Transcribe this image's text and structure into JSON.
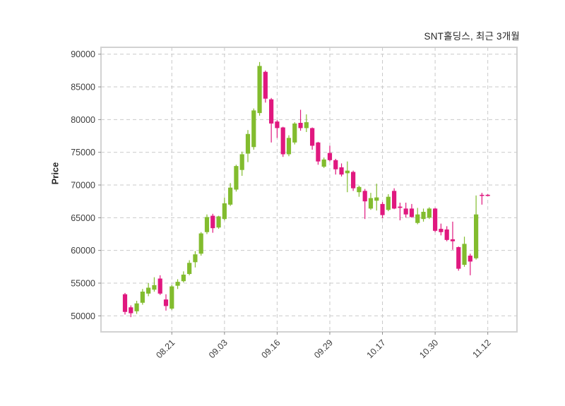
{
  "chart_data": {
    "type": "candlestick",
    "title": "SNT홀딩스, 최근 3개월",
    "ylabel": "Price",
    "up_color": "#82BC2E",
    "down_color": "#E0187F",
    "grid_color": "#c9c9c9",
    "spine_color": "#d2d2d2",
    "grid": true,
    "ylim": [
      47550,
      91050
    ],
    "yticks": [
      50000,
      55000,
      60000,
      65000,
      70000,
      75000,
      80000,
      85000,
      90000
    ],
    "xtick_labels": [
      "08.21",
      "09.03",
      "09.16",
      "09.29",
      "10.17",
      "10.30",
      "11.12"
    ],
    "xtick_indices": [
      8,
      17,
      26,
      35,
      44,
      53,
      62
    ],
    "candles_format": [
      "open",
      "high",
      "low",
      "close"
    ],
    "candles": [
      [
        53300,
        53500,
        50200,
        50600
      ],
      [
        51300,
        51600,
        49800,
        50400
      ],
      [
        50700,
        52300,
        50300,
        51900
      ],
      [
        52000,
        54100,
        51700,
        53700
      ],
      [
        53400,
        55000,
        53000,
        54300
      ],
      [
        54000,
        55900,
        53700,
        54700
      ],
      [
        55700,
        56200,
        53200,
        53400
      ],
      [
        52500,
        53300,
        50800,
        51500
      ],
      [
        51100,
        54700,
        50900,
        54500
      ],
      [
        54600,
        55600,
        54100,
        55200
      ],
      [
        55300,
        56800,
        55100,
        56300
      ],
      [
        56400,
        58500,
        56200,
        58100
      ],
      [
        58200,
        59900,
        57400,
        59400
      ],
      [
        59500,
        62800,
        59200,
        62600
      ],
      [
        62800,
        65500,
        62500,
        65100
      ],
      [
        65300,
        65600,
        62700,
        63400
      ],
      [
        63500,
        65300,
        63300,
        65200
      ],
      [
        64800,
        68100,
        64600,
        67200
      ],
      [
        67000,
        70300,
        66800,
        69600
      ],
      [
        69300,
        73100,
        69000,
        72900
      ],
      [
        72300,
        75100,
        71400,
        74700
      ],
      [
        74800,
        78400,
        73500,
        77800
      ],
      [
        75800,
        81700,
        75400,
        81400
      ],
      [
        81000,
        88800,
        80600,
        88200
      ],
      [
        87300,
        87500,
        82600,
        83200
      ],
      [
        83100,
        83300,
        76500,
        79400
      ],
      [
        79700,
        79900,
        77200,
        78700
      ],
      [
        78800,
        78900,
        74300,
        74700
      ],
      [
        74700,
        77600,
        74400,
        77200
      ],
      [
        76500,
        79600,
        76200,
        79400
      ],
      [
        79500,
        81500,
        78300,
        78700
      ],
      [
        78700,
        80800,
        78100,
        79600
      ],
      [
        78700,
        78800,
        75400,
        76000
      ],
      [
        76500,
        76600,
        73100,
        73600
      ],
      [
        72800,
        74200,
        72600,
        73900
      ],
      [
        74900,
        76000,
        73600,
        73800
      ],
      [
        73800,
        74000,
        71600,
        72400
      ],
      [
        72700,
        73300,
        71300,
        71600
      ],
      [
        71800,
        73600,
        68900,
        72200
      ],
      [
        72000,
        72200,
        69100,
        69500
      ],
      [
        68900,
        69900,
        68200,
        69700
      ],
      [
        69100,
        69400,
        64800,
        67500
      ],
      [
        66400,
        68800,
        66200,
        68000
      ],
      [
        67600,
        70200,
        66100,
        68100
      ],
      [
        67100,
        67400,
        64900,
        65400
      ],
      [
        66200,
        68600,
        66000,
        68200
      ],
      [
        69100,
        69500,
        66300,
        66400
      ],
      [
        66700,
        67300,
        64600,
        66500
      ],
      [
        66400,
        67300,
        65000,
        65500
      ],
      [
        66400,
        67100,
        65000,
        65100
      ],
      [
        64200,
        66500,
        64000,
        65500
      ],
      [
        64800,
        66400,
        64400,
        65900
      ],
      [
        65000,
        66600,
        64800,
        66400
      ],
      [
        66400,
        66500,
        62800,
        63000
      ],
      [
        63300,
        64100,
        62300,
        62800
      ],
      [
        63200,
        63700,
        61400,
        61600
      ],
      [
        61700,
        64400,
        60100,
        61400
      ],
      [
        60500,
        60600,
        56900,
        57200
      ],
      [
        57800,
        62100,
        57500,
        61000
      ],
      [
        59200,
        59500,
        56200,
        58300
      ],
      [
        58800,
        68400,
        58600,
        65500
      ],
      [
        68500,
        68800,
        67000,
        68500
      ],
      [
        68500,
        68600,
        68300,
        68500
      ]
    ]
  }
}
